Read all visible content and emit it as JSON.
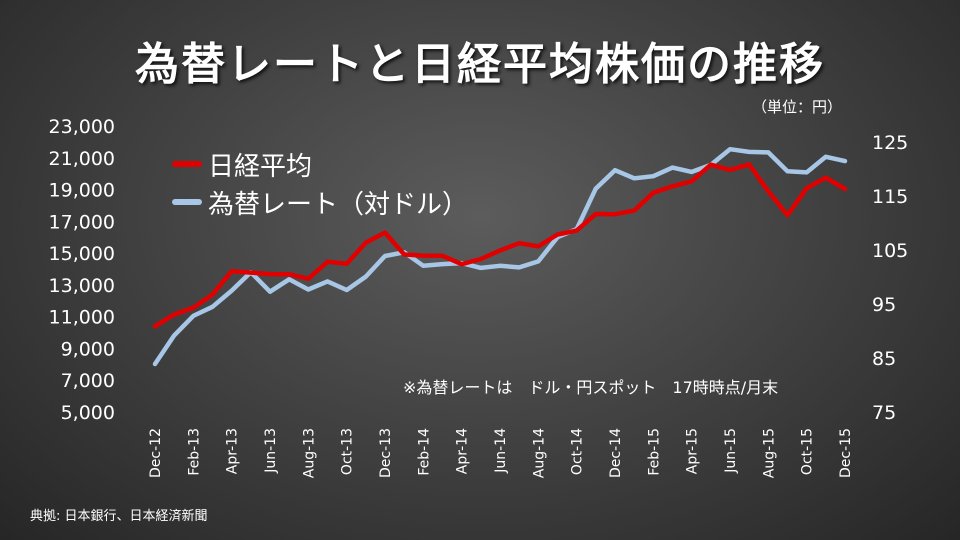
{
  "title": "為替レートと日経平均株価の推移",
  "unit_label": "（単位：円）",
  "note": "※為替レートは　ドル・円スポット　17時時点/月末",
  "source": "典拠: 日本銀行、日本経済新聞",
  "chart_data": {
    "type": "line",
    "x": [
      "Dec-12",
      "Jan-13",
      "Feb-13",
      "Mar-13",
      "Apr-13",
      "May-13",
      "Jun-13",
      "Jul-13",
      "Aug-13",
      "Sep-13",
      "Oct-13",
      "Nov-13",
      "Dec-13",
      "Jan-14",
      "Feb-14",
      "Mar-14",
      "Apr-14",
      "May-14",
      "Jun-14",
      "Jul-14",
      "Aug-14",
      "Sep-14",
      "Oct-14",
      "Nov-14",
      "Dec-14",
      "Jan-15",
      "Feb-15",
      "Mar-15",
      "Apr-15",
      "May-15",
      "Jun-15",
      "Jul-15",
      "Aug-15",
      "Sep-15",
      "Oct-15",
      "Nov-15",
      "Dec-15"
    ],
    "x_tick_labels": [
      "Dec-12",
      "Feb-13",
      "Apr-13",
      "Jun-13",
      "Aug-13",
      "Oct-13",
      "Dec-13",
      "Feb-14",
      "Apr-14",
      "Jun-14",
      "Aug-14",
      "Oct-14",
      "Dec-14",
      "Feb-15",
      "Apr-15",
      "Jun-15",
      "Aug-15",
      "Oct-15",
      "Dec-15"
    ],
    "y_left_ticks": [
      "5,000",
      "7,000",
      "9,000",
      "11,000",
      "13,000",
      "15,000",
      "17,000",
      "19,000",
      "21,000",
      "23,000"
    ],
    "y_right_ticks": [
      "75",
      "85",
      "95",
      "105",
      "115",
      "125"
    ],
    "y_left_range": [
      5000,
      23000
    ],
    "y_right_range": [
      75,
      128
    ],
    "series": [
      {
        "name": "日経平均",
        "axis": "left",
        "color": "#e00000",
        "values": [
          10395,
          11139,
          11559,
          12398,
          13860,
          13775,
          13677,
          13668,
          13389,
          14456,
          14328,
          15662,
          16291,
          14915,
          14841,
          14828,
          14304,
          14632,
          15162,
          15621,
          15425,
          16174,
          16414,
          17460,
          17451,
          17674,
          18798,
          19207,
          19520,
          20563,
          20236,
          20585,
          18890,
          17388,
          19083,
          19747,
          19034
        ]
      },
      {
        "name": "為替レート（対ドル）",
        "axis": "right",
        "color": "#a8c6e6",
        "values": [
          83.9,
          89.2,
          92.8,
          94.5,
          97.5,
          100.9,
          97.3,
          99.6,
          97.7,
          99.2,
          97.6,
          100.1,
          103.9,
          104.6,
          102.1,
          102.4,
          102.6,
          101.7,
          102.1,
          101.8,
          102.9,
          107.4,
          108.9,
          116.4,
          119.8,
          118.3,
          118.7,
          120.3,
          119.5,
          120.8,
          123.7,
          123.2,
          123.1,
          119.6,
          119.4,
          122.3,
          121.5
        ]
      }
    ],
    "grid": false,
    "legend_placement": "top-left"
  }
}
